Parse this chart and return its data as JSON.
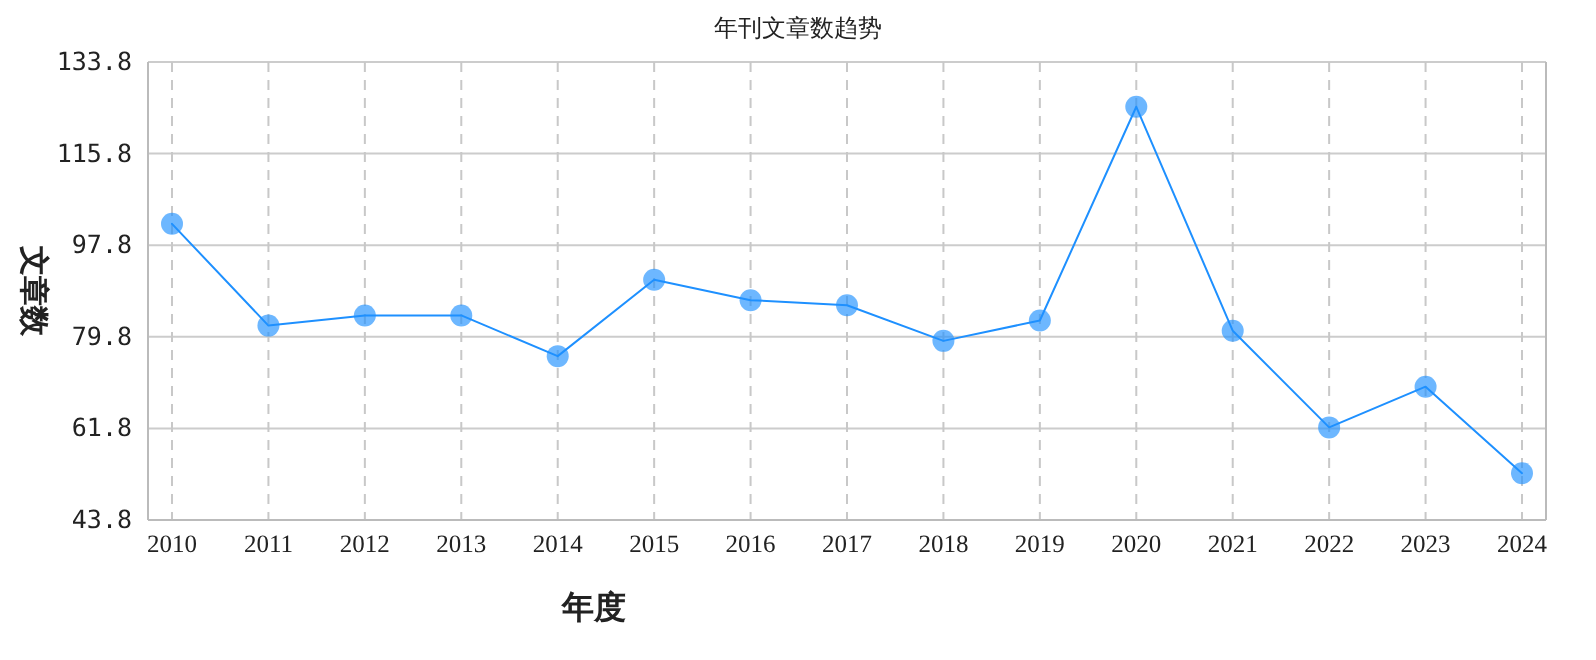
{
  "chart_data": {
    "type": "line",
    "title": "年刊文章数趋势",
    "xlabel": "年度",
    "ylabel": "文章数",
    "categories": [
      "2010",
      "2011",
      "2012",
      "2013",
      "2014",
      "2015",
      "2016",
      "2017",
      "2018",
      "2019",
      "2020",
      "2021",
      "2022",
      "2023",
      "2024"
    ],
    "series": [
      {
        "color": "#1e90ff",
        "values": [
          102,
          82,
          84,
          84,
          76,
          91,
          87,
          86,
          79,
          83,
          125,
          81,
          62,
          70,
          53
        ]
      }
    ],
    "ylim": [
      43.8,
      133.8
    ],
    "yticks": [
      43.8,
      61.8,
      79.8,
      97.8,
      115.8,
      133.8
    ],
    "grid": true,
    "marker": "circle",
    "line_style": "solid"
  }
}
